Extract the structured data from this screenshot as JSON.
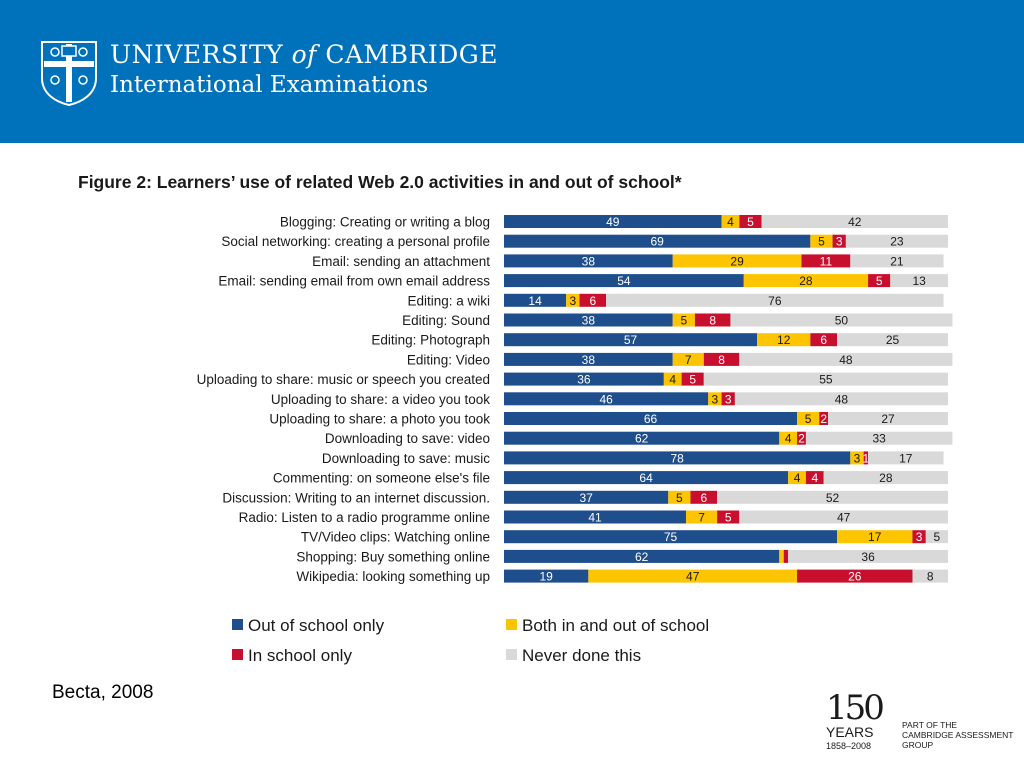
{
  "header": {
    "university_part1": "UNIVERSITY",
    "university_of": "of",
    "university_part2": "CAMBRIDGE",
    "subtitle": "International Examinations",
    "brand_color": "#0072bc",
    "crest_icon": "university-crest-icon"
  },
  "figure_title": "Figure 2: Learners’ use of related Web 2.0 activities in and out of school*",
  "chart_data": {
    "type": "bar",
    "orientation": "horizontal",
    "stacked": true,
    "title": "Figure 2: Learners’ use of related Web 2.0 activities in and out of school*",
    "xlabel": "",
    "ylabel": "",
    "xlim": [
      0,
      100
    ],
    "grid": false,
    "legend_position": "bottom",
    "categories": [
      "Blogging: Creating or writing a blog",
      "Social networking: creating a personal profile",
      "Email: sending an attachment",
      "Email: sending email from own email address",
      "Editing: a wiki",
      "Editing: Sound",
      "Editing: Photograph",
      "Editing: Video",
      "Uploading to share: music or speech you created",
      "Uploading to share: a video you took",
      "Uploading to share: a photo you took",
      "Downloading to save: video",
      "Downloading to save: music",
      "Commenting: on someone else's file",
      "Discussion: Writing to an internet discussion.",
      "Radio: Listen to a radio programme online",
      "TV/Video clips: Watching online",
      "Shopping: Buy something online",
      "Wikipedia: looking something up"
    ],
    "series": [
      {
        "name": "Out of school only",
        "color": "#1f4e8c",
        "values": [
          49,
          69,
          38,
          54,
          14,
          38,
          57,
          38,
          36,
          46,
          66,
          62,
          78,
          64,
          37,
          41,
          75,
          62,
          19
        ]
      },
      {
        "name": "Both in and out of school",
        "color": "#fdc400",
        "values": [
          4,
          5,
          29,
          28,
          3,
          5,
          12,
          7,
          4,
          3,
          5,
          4,
          3,
          4,
          5,
          7,
          17,
          1,
          47
        ]
      },
      {
        "name": "In school only",
        "color": "#c8102e",
        "values": [
          5,
          3,
          11,
          5,
          6,
          8,
          6,
          8,
          5,
          3,
          2,
          2,
          1,
          4,
          6,
          5,
          3,
          1,
          26
        ]
      },
      {
        "name": "Never done this",
        "color": "#d9d9d9",
        "values": [
          42,
          23,
          21,
          13,
          76,
          50,
          25,
          48,
          55,
          48,
          27,
          33,
          17,
          28,
          52,
          47,
          5,
          36,
          8
        ]
      }
    ],
    "data_labels": [
      [
        "49",
        "4",
        "5",
        "42"
      ],
      [
        "69",
        "5",
        "3",
        "23"
      ],
      [
        "38",
        "29",
        "11",
        "21"
      ],
      [
        "54",
        "28",
        "5",
        "13"
      ],
      [
        "14",
        "3",
        "6",
        "76"
      ],
      [
        "38",
        "5",
        "8",
        "50"
      ],
      [
        "57",
        "12",
        "6",
        "25"
      ],
      [
        "38",
        "7",
        "8",
        "48"
      ],
      [
        "36",
        "4",
        "5",
        "55"
      ],
      [
        "46",
        "3",
        "3",
        "48"
      ],
      [
        "66",
        "5",
        "2",
        "27"
      ],
      [
        "62",
        "4",
        "2",
        "33"
      ],
      [
        "78",
        "3",
        "1",
        "17"
      ],
      [
        "64",
        "4",
        "4",
        "28"
      ],
      [
        "37",
        "5",
        "6",
        "52"
      ],
      [
        "41",
        "7",
        "5",
        "47"
      ],
      [
        "75",
        "17",
        "3",
        "5"
      ],
      [
        "62",
        "",
        "",
        "36"
      ],
      [
        "19",
        "47",
        "26",
        "8"
      ]
    ]
  },
  "legend": {
    "items": [
      {
        "label": "Out of school only",
        "color": "#1f4e8c"
      },
      {
        "label": "Both in and out of school",
        "color": "#fdc400"
      },
      {
        "label": "In school only",
        "color": "#c8102e"
      },
      {
        "label": "Never done this",
        "color": "#d9d9d9"
      }
    ]
  },
  "source": "Becta, 2008",
  "anniversary": {
    "number": "150",
    "years": "YEARS",
    "range": "1858–2008",
    "part_of": [
      "PART OF THE",
      "CAMBRIDGE ASSESSMENT",
      "GROUP"
    ]
  }
}
